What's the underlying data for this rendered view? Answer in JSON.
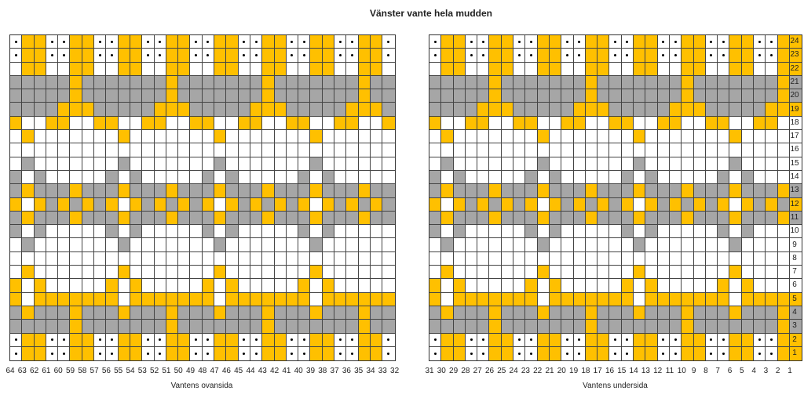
{
  "title": "Vänster vante hela mudden",
  "left_caption": "Vantens ovansida",
  "right_caption": "Vantens undersida",
  "colors": {
    "yellow": "#FFC000",
    "gray": "#A6A6A6",
    "white": "#FFFFFF",
    "dot": "#000000"
  },
  "left_column_labels": [
    "64",
    "63",
    "62",
    "61",
    "60",
    "59",
    "58",
    "57",
    "56",
    "55",
    "54",
    "53",
    "52",
    "51",
    "50",
    "49",
    "48",
    "47",
    "46",
    "45",
    "44",
    "43",
    "42",
    "41",
    "40",
    "39",
    "38",
    "37",
    "36",
    "35",
    "34",
    "33",
    "32"
  ],
  "right_column_labels": [
    "31",
    "30",
    "29",
    "28",
    "27",
    "26",
    "25",
    "24",
    "23",
    "22",
    "21",
    "20",
    "19",
    "18",
    "17",
    "16",
    "15",
    "14",
    "13",
    "12",
    "11",
    "10",
    "9",
    "8",
    "7",
    "6",
    "5",
    "4",
    "3",
    "2",
    "1"
  ],
  "row_labels": [
    "24",
    "23",
    "22",
    "21",
    "20",
    "19",
    "18",
    "17",
    "16",
    "15",
    "14",
    "13",
    "12",
    "11",
    "10",
    "9",
    "8",
    "7",
    "6",
    "5",
    "4",
    "3",
    "2",
    "1"
  ],
  "legend": {
    "Y": "yellow",
    "G": "gray",
    "W": "white",
    "D": "white cell with dot"
  }
}
